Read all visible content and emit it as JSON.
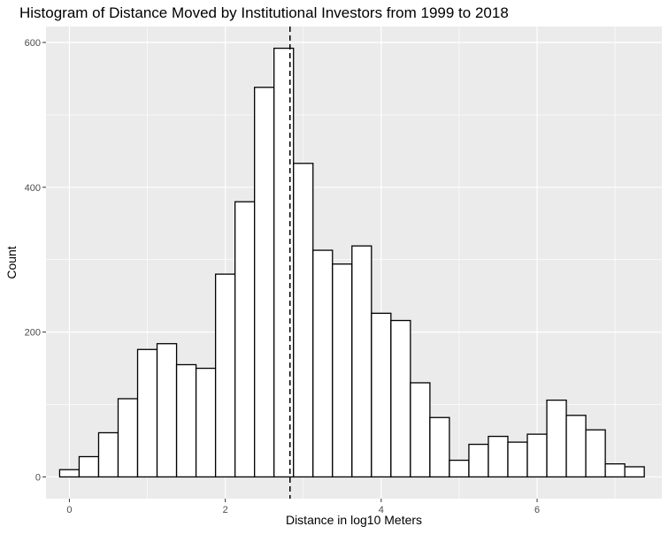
{
  "chart_data": {
    "type": "bar",
    "title": "Histogram of Distance Moved by Institutional Investors from 1999 to 2018",
    "xlabel": "Distance in log10 Meters",
    "ylabel": "Count",
    "xlim": [
      -0.3,
      7.6
    ],
    "ylim": [
      -30,
      622
    ],
    "x_ticks": [
      0,
      2,
      4,
      6
    ],
    "x_tick_labels": [
      "0",
      "2",
      "4",
      "6"
    ],
    "y_ticks": [
      0,
      200,
      400,
      600
    ],
    "y_tick_labels": [
      "0",
      "200",
      "400",
      "600"
    ],
    "bin_width": 0.25,
    "bin_centers": [
      0.0,
      0.25,
      0.5,
      0.75,
      1.0,
      1.25,
      1.5,
      1.75,
      2.0,
      2.25,
      2.5,
      2.75,
      3.0,
      3.25,
      3.5,
      3.75,
      4.0,
      4.25,
      4.5,
      4.75,
      5.0,
      5.25,
      5.5,
      5.75,
      6.0,
      6.25,
      6.5,
      6.75,
      7.0,
      7.25
    ],
    "values": [
      10,
      28,
      61,
      108,
      176,
      184,
      155,
      150,
      280,
      380,
      538,
      592,
      433,
      313,
      294,
      319,
      226,
      216,
      130,
      82,
      23,
      45,
      56,
      48,
      59,
      106,
      85,
      65,
      18,
      14
    ],
    "reference_line": {
      "x": 2.83,
      "style": "dashed"
    },
    "grid": true,
    "colors": {
      "panel_background": "#ebebeb",
      "grid_major": "#ffffff",
      "bar_fill": "#ffffff",
      "bar_outline": "#000000",
      "reference_line": "#000000"
    }
  }
}
